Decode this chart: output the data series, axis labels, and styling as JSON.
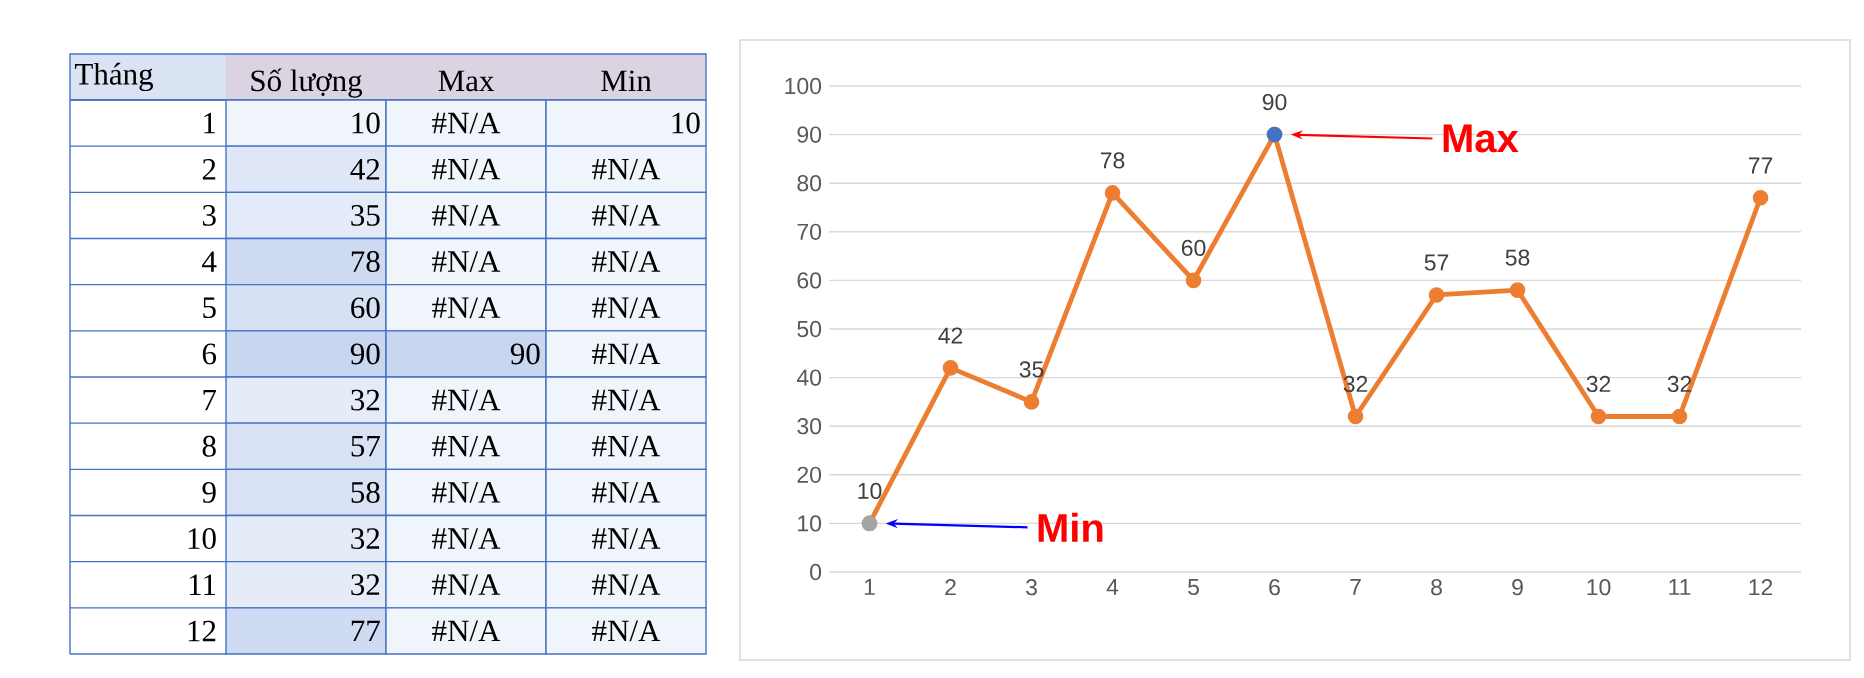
{
  "chart_data": [
    {
      "type": "heatmap",
      "ylabel": "Tháng",
      "data_labels": true,
      "categories": [
        "Số lượng",
        "Max",
        "Min"
      ],
      "y_categories": [
        "1",
        "2",
        "3",
        "4",
        "5",
        "6",
        "7",
        "8",
        "9",
        "10",
        "11",
        "12"
      ],
      "cells": [
        [
          10,
          null,
          10
        ],
        [
          42,
          null,
          null
        ],
        [
          35,
          null,
          null
        ],
        [
          78,
          null,
          null
        ],
        [
          60,
          null,
          null
        ],
        [
          90,
          90,
          null
        ],
        [
          32,
          null,
          null
        ],
        [
          57,
          null,
          null
        ],
        [
          58,
          null,
          null
        ],
        [
          32,
          null,
          null
        ],
        [
          32,
          null,
          null
        ],
        [
          77,
          null,
          null
        ]
      ],
      "cell_labels": [
        [
          "10",
          "#N/A",
          "10"
        ],
        [
          "42",
          "#N/A",
          "#N/A"
        ],
        [
          "35",
          "#N/A",
          "#N/A"
        ],
        [
          "78",
          "#N/A",
          "#N/A"
        ],
        [
          "60",
          "#N/A",
          "#N/A"
        ],
        [
          "90",
          "90",
          "#N/A"
        ],
        [
          "32",
          "#N/A",
          "#N/A"
        ],
        [
          "57",
          "#N/A",
          "#N/A"
        ],
        [
          "58",
          "#N/A",
          "#N/A"
        ],
        [
          "32",
          "#N/A",
          "#N/A"
        ],
        [
          "32",
          "#N/A",
          "#N/A"
        ],
        [
          "77",
          "#N/A",
          "#N/A"
        ]
      ]
    },
    {
      "type": "line",
      "categories": [
        "1",
        "2",
        "3",
        "4",
        "5",
        "6",
        "7",
        "8",
        "9",
        "10",
        "11",
        "12"
      ],
      "series": [
        {
          "color": "#ed7d31",
          "values": [
            10,
            42,
            35,
            78,
            60,
            90,
            32,
            57,
            58,
            32,
            32,
            77
          ],
          "value_labels": [
            "10",
            "42",
            "35",
            "78",
            "60",
            "90",
            "32",
            "57",
            "58",
            "32",
            "32",
            "77"
          ]
        },
        {
          "color": "#4472c4",
          "values": [
            null,
            null,
            null,
            null,
            null,
            90,
            null,
            null,
            null,
            null,
            null,
            null
          ]
        },
        {
          "color": "#a5a5a5",
          "values": [
            10,
            null,
            null,
            null,
            null,
            null,
            null,
            null,
            null,
            null,
            null,
            null
          ]
        }
      ],
      "ylim": [
        0,
        100
      ],
      "yticks": [
        0,
        10,
        20,
        30,
        40,
        50,
        60,
        70,
        80,
        90,
        100
      ],
      "grid": "y",
      "marker": "circle",
      "line_style": "solid",
      "annotations": [
        "Max",
        "Min"
      ]
    }
  ]
}
